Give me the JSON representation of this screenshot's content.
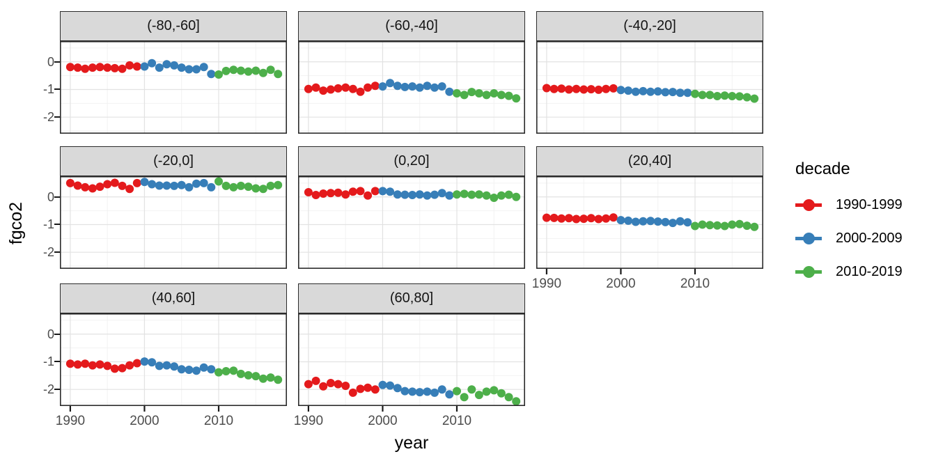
{
  "figure": {
    "background": "#FFFFFF"
  },
  "axes": {
    "x_title": "year",
    "y_title": "fgco2",
    "x_ticks": [
      1990,
      2000,
      2010
    ],
    "x_minor": [
      1995,
      2005,
      2015
    ],
    "y_ticks": [
      0,
      -1,
      -2
    ],
    "y_tick_labels": [
      "0",
      "-1",
      "-2"
    ],
    "y_minor": [
      0.5,
      -0.5,
      -1.5,
      -2.5
    ],
    "x_domain": [
      1988.6,
      2019.2
    ],
    "y_domain": [
      -2.6,
      0.75
    ],
    "tick_label_color": "#4D4D4D"
  },
  "legend": {
    "title": "decade",
    "items": [
      {
        "label": "1990-1999",
        "color": "#E41A1C"
      },
      {
        "label": "2000-2009",
        "color": "#377EB8"
      },
      {
        "label": "2010-2019",
        "color": "#4DAF4A"
      }
    ]
  },
  "style": {
    "panel_bg": "#FFFFFF",
    "panel_border": "#2B2B2B",
    "grid_major": "#E2E2E2",
    "grid_minor": "#F2F2F2",
    "strip_fill": "#D9D9D9",
    "tick_mark": "#1A1A1A"
  },
  "chart_data": {
    "type": "scatter",
    "title": "",
    "xlabel": "year",
    "ylabel": "fgco2",
    "facet_variable": "latitude band",
    "group_variable": "decade",
    "xlim": [
      1988.6,
      2019.2
    ],
    "ylim": [
      -2.6,
      0.75
    ],
    "grid": true,
    "legend_position": "right",
    "years": [
      1990,
      1991,
      1992,
      1993,
      1994,
      1995,
      1996,
      1997,
      1998,
      1999,
      2000,
      2001,
      2002,
      2003,
      2004,
      2005,
      2006,
      2007,
      2008,
      2009,
      2010,
      2011,
      2012,
      2013,
      2014,
      2015,
      2016,
      2017,
      2018
    ],
    "decades": [
      {
        "name": "1990-1999",
        "start": 1990,
        "end": 1999,
        "color": "#E41A1C"
      },
      {
        "name": "2000-2009",
        "start": 2000,
        "end": 2009,
        "color": "#377EB8"
      },
      {
        "name": "2010-2019",
        "start": 2010,
        "end": 2019,
        "color": "#4DAF4A"
      }
    ],
    "facets": [
      {
        "label": "(-80,-60]",
        "values": [
          -0.19,
          -0.21,
          -0.25,
          -0.21,
          -0.19,
          -0.21,
          -0.23,
          -0.25,
          -0.13,
          -0.17,
          -0.17,
          -0.05,
          -0.21,
          -0.09,
          -0.13,
          -0.21,
          -0.27,
          -0.27,
          -0.19,
          -0.44,
          -0.46,
          -0.33,
          -0.29,
          -0.32,
          -0.35,
          -0.32,
          -0.4,
          -0.29,
          -0.44
        ]
      },
      {
        "label": "(-60,-40]",
        "values": [
          -0.98,
          -0.93,
          -1.04,
          -1.0,
          -0.96,
          -0.93,
          -0.98,
          -1.08,
          -0.93,
          -0.87,
          -0.89,
          -0.77,
          -0.87,
          -0.91,
          -0.89,
          -0.93,
          -0.87,
          -0.93,
          -0.89,
          -1.08,
          -1.14,
          -1.2,
          -1.09,
          -1.14,
          -1.2,
          -1.14,
          -1.2,
          -1.23,
          -1.32
        ]
      },
      {
        "label": "(-40,-20]",
        "values": [
          -0.95,
          -0.98,
          -0.97,
          -1.0,
          -0.98,
          -1.0,
          -0.99,
          -1.01,
          -0.98,
          -0.96,
          -1.02,
          -1.04,
          -1.08,
          -1.06,
          -1.08,
          -1.07,
          -1.1,
          -1.09,
          -1.12,
          -1.12,
          -1.16,
          -1.2,
          -1.2,
          -1.24,
          -1.22,
          -1.24,
          -1.25,
          -1.28,
          -1.33
        ]
      },
      {
        "label": "(-20,0]",
        "values": [
          0.5,
          0.41,
          0.35,
          0.31,
          0.37,
          0.46,
          0.51,
          0.4,
          0.29,
          0.5,
          0.54,
          0.46,
          0.41,
          0.41,
          0.4,
          0.43,
          0.35,
          0.48,
          0.5,
          0.35,
          0.56,
          0.4,
          0.35,
          0.4,
          0.37,
          0.31,
          0.29,
          0.4,
          0.43
        ]
      },
      {
        "label": "(0,20]",
        "values": [
          0.17,
          0.07,
          0.12,
          0.14,
          0.15,
          0.09,
          0.19,
          0.21,
          0.05,
          0.21,
          0.21,
          0.19,
          0.09,
          0.08,
          0.07,
          0.09,
          0.05,
          0.08,
          0.14,
          0.05,
          0.09,
          0.11,
          0.08,
          0.09,
          0.05,
          -0.03,
          0.05,
          0.08,
          0.0
        ]
      },
      {
        "label": "(20,40]",
        "values": [
          -0.75,
          -0.76,
          -0.78,
          -0.77,
          -0.8,
          -0.79,
          -0.77,
          -0.8,
          -0.78,
          -0.74,
          -0.84,
          -0.86,
          -0.9,
          -0.88,
          -0.87,
          -0.89,
          -0.91,
          -0.94,
          -0.88,
          -0.92,
          -1.05,
          -1.0,
          -1.02,
          -1.03,
          -1.05,
          -1.0,
          -0.98,
          -1.04,
          -1.08
        ]
      },
      {
        "label": "(40,60]",
        "values": [
          -1.07,
          -1.1,
          -1.07,
          -1.13,
          -1.1,
          -1.15,
          -1.25,
          -1.23,
          -1.13,
          -1.05,
          -0.99,
          -1.02,
          -1.15,
          -1.13,
          -1.17,
          -1.27,
          -1.29,
          -1.32,
          -1.21,
          -1.27,
          -1.38,
          -1.34,
          -1.32,
          -1.44,
          -1.49,
          -1.52,
          -1.61,
          -1.57,
          -1.65
        ]
      },
      {
        "label": "(60,80]",
        "values": [
          -1.81,
          -1.69,
          -1.89,
          -1.77,
          -1.81,
          -1.87,
          -2.12,
          -1.98,
          -1.94,
          -2.0,
          -1.84,
          -1.86,
          -1.95,
          -2.06,
          -2.08,
          -2.1,
          -2.08,
          -2.12,
          -2.0,
          -2.18,
          -2.06,
          -2.28,
          -2.0,
          -2.2,
          -2.08,
          -2.03,
          -2.14,
          -2.28,
          -2.43
        ]
      }
    ]
  }
}
